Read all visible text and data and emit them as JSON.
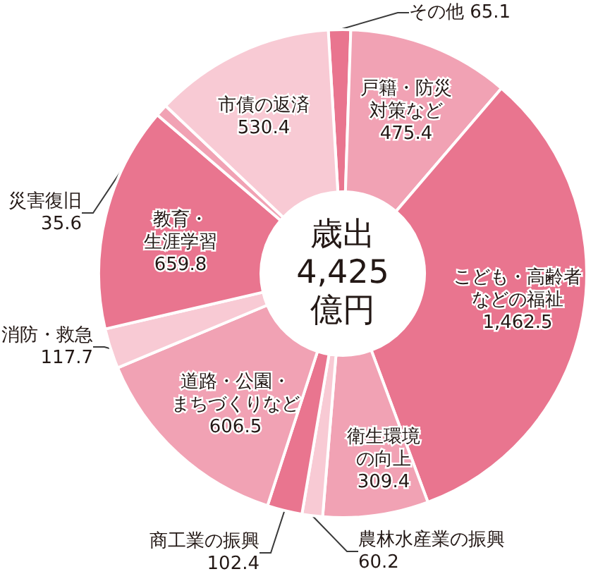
{
  "chart_data": {
    "type": "donut",
    "title": "歳出 4,425 億円",
    "categories": [
      "その他",
      "戸籍・防災対策など",
      "こども・高齢者などの福祉",
      "衛生環境の向上",
      "農林水産業の振興",
      "商工業の振興",
      "道路・公園・まちづくりなど",
      "消防・救急",
      "教育・生涯学習",
      "災害復旧",
      "市債の返済"
    ],
    "values": [
      65.1,
      475.4,
      1462.5,
      309.4,
      60.2,
      102.4,
      606.5,
      117.7,
      659.8,
      35.6,
      530.4
    ],
    "value_labels": [
      "65.1",
      "475.4",
      "1,462.5",
      "309.4",
      "60.2",
      "102.4",
      "606.5",
      "117.7",
      "659.8",
      "35.6",
      "530.4"
    ],
    "colors": [
      "#e9758f",
      "#f1a2b4",
      "#e9758f",
      "#f1a2b4",
      "#f8cad4",
      "#e9758f",
      "#f1a2b4",
      "#f8cad4",
      "#e9758f",
      "#f1a2b4",
      "#f8cad4"
    ]
  }
}
